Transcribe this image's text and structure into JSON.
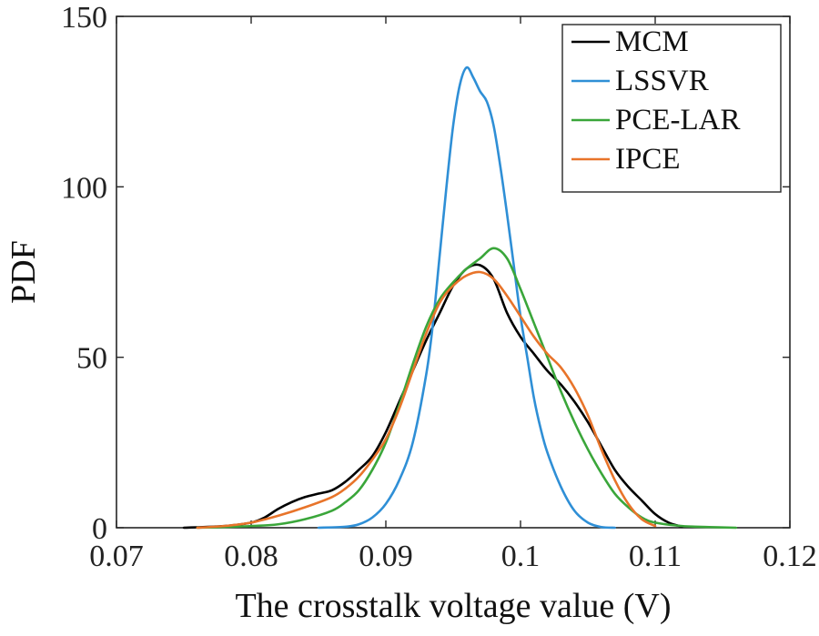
{
  "chart_data": {
    "type": "line",
    "xlabel": "The crosstalk voltage value (V)",
    "ylabel": "PDF",
    "xlim": [
      0.07,
      0.12
    ],
    "ylim": [
      0,
      150
    ],
    "xticks": [
      0.07,
      0.08,
      0.09,
      0.1,
      0.11,
      0.12
    ],
    "xtick_labels": [
      "0.07",
      "0.08",
      "0.09",
      "0.1",
      "0.11",
      "0.12"
    ],
    "yticks": [
      0,
      50,
      100,
      150
    ],
    "ytick_labels": [
      "0",
      "50",
      "100",
      "150"
    ],
    "grid": false,
    "legend_position": "top-right",
    "series": [
      {
        "name": "MCM",
        "color": "#000000",
        "x": [
          0.075,
          0.078,
          0.08,
          0.081,
          0.082,
          0.083,
          0.084,
          0.085,
          0.086,
          0.087,
          0.088,
          0.089,
          0.09,
          0.091,
          0.092,
          0.093,
          0.094,
          0.095,
          0.096,
          0.097,
          0.098,
          0.099,
          0.1,
          0.101,
          0.102,
          0.103,
          0.104,
          0.105,
          0.106,
          0.107,
          0.108,
          0.109,
          0.11,
          0.111,
          0.112
        ],
        "y": [
          0,
          0.5,
          1.5,
          3,
          5.5,
          7.5,
          9,
          10,
          11,
          13.5,
          17,
          21,
          28,
          37,
          46,
          55,
          63,
          71,
          76,
          77,
          73,
          63,
          56,
          51,
          46,
          42,
          37,
          31,
          24,
          17,
          12,
          8,
          4,
          1.5,
          0.3
        ]
      },
      {
        "name": "LSSVR",
        "color": "#2f8fd6",
        "x": [
          0.085,
          0.087,
          0.088,
          0.089,
          0.09,
          0.091,
          0.092,
          0.093,
          0.0935,
          0.094,
          0.0945,
          0.095,
          0.0955,
          0.096,
          0.0965,
          0.097,
          0.0975,
          0.098,
          0.0985,
          0.099,
          0.0995,
          0.1,
          0.1005,
          0.101,
          0.1015,
          0.102,
          0.103,
          0.104,
          0.105,
          0.106,
          0.107
        ],
        "y": [
          0,
          0.3,
          1,
          3,
          7,
          14,
          25,
          45,
          60,
          80,
          100,
          118,
          130,
          135,
          132,
          128,
          125,
          118,
          106,
          92,
          77,
          62,
          50,
          38,
          29,
          22,
          12,
          5,
          1.5,
          0.2,
          0
        ]
      },
      {
        "name": "PCE-LAR",
        "color": "#3aa63a",
        "x": [
          0.076,
          0.078,
          0.08,
          0.082,
          0.084,
          0.086,
          0.087,
          0.088,
          0.089,
          0.09,
          0.091,
          0.092,
          0.093,
          0.094,
          0.095,
          0.096,
          0.097,
          0.098,
          0.099,
          0.1,
          0.101,
          0.102,
          0.103,
          0.104,
          0.105,
          0.106,
          0.107,
          0.108,
          0.109,
          0.11,
          0.112,
          0.114,
          0.116
        ],
        "y": [
          0,
          0.2,
          0.5,
          1,
          2.5,
          5,
          7.5,
          11,
          17,
          25,
          36,
          48,
          59,
          67,
          72,
          76,
          79,
          82,
          79,
          70,
          60,
          50,
          40,
          31,
          23,
          16,
          10,
          6,
          3,
          1.5,
          0.5,
          0.2,
          0
        ]
      },
      {
        "name": "IPCE",
        "color": "#e8742a",
        "x": [
          0.076,
          0.078,
          0.08,
          0.082,
          0.084,
          0.086,
          0.087,
          0.088,
          0.089,
          0.09,
          0.091,
          0.092,
          0.093,
          0.094,
          0.095,
          0.096,
          0.097,
          0.098,
          0.099,
          0.1,
          0.101,
          0.102,
          0.103,
          0.104,
          0.105,
          0.106,
          0.107,
          0.108,
          0.109,
          0.11
        ],
        "y": [
          0,
          0.5,
          1.5,
          3.5,
          6,
          9,
          11.5,
          15,
          20,
          26,
          35,
          46,
          57,
          66,
          71,
          74,
          75,
          73,
          68,
          62,
          56,
          51,
          47,
          41,
          33,
          23,
          14,
          7,
          2.5,
          0.5
        ]
      }
    ]
  }
}
